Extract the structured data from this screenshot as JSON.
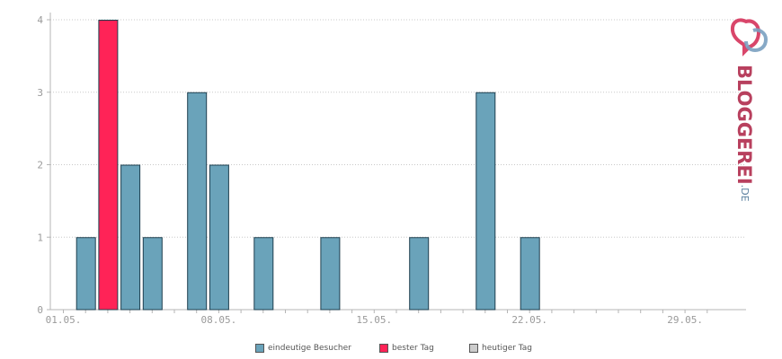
{
  "chart_data": {
    "type": "bar",
    "x": [
      "01.05.",
      "02.05.",
      "03.05.",
      "04.05.",
      "05.05.",
      "06.05.",
      "07.05.",
      "08.05.",
      "09.05.",
      "10.05.",
      "11.05.",
      "12.05.",
      "13.05.",
      "14.05.",
      "15.05.",
      "16.05.",
      "17.05.",
      "18.05.",
      "19.05.",
      "20.05.",
      "21.05.",
      "22.05.",
      "23.05.",
      "24.05.",
      "25.05.",
      "26.05.",
      "27.05.",
      "28.05.",
      "29.05.",
      "30.05."
    ],
    "series": [
      {
        "name": "eindeutige Besucher",
        "values": [
          0,
          1,
          4,
          2,
          1,
          0,
          3,
          2,
          0,
          1,
          0,
          0,
          1,
          0,
          0,
          0,
          1,
          0,
          0,
          3,
          0,
          1,
          0,
          0,
          0,
          0,
          0,
          0,
          0,
          0
        ]
      }
    ],
    "highlight_index": 2,
    "ylim": [
      0,
      4
    ],
    "yticks": [
      "0",
      "1",
      "2",
      "3",
      "4"
    ],
    "xticks": [
      "01.05.",
      "08.05.",
      "15.05.",
      "22.05.",
      "29.05."
    ],
    "grid": true,
    "legend_position": "bottom",
    "colors": {
      "bar": "#6aa3ba",
      "best": "#ff2357",
      "today": "#cccccc",
      "outline": "#1e3f4f",
      "grid": "#c8c8c8",
      "axis": "#b5b5b5"
    }
  },
  "legend": [
    {
      "label": "eindeutige Besucher",
      "color": "#6aa3ba"
    },
    {
      "label": "bester Tag",
      "color": "#ff2357"
    },
    {
      "label": "heutiger Tag",
      "color": "#cccccc"
    }
  ],
  "logo": {
    "name": "BLOGGEREI",
    "tld": ".DE"
  }
}
